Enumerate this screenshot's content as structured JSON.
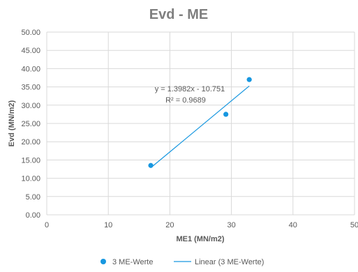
{
  "chart_data": {
    "type": "scatter",
    "title": "Evd - ME",
    "xlabel": "ME1 (MN/m2)",
    "ylabel": "Evd (MN/m2)",
    "xlim": [
      0,
      50
    ],
    "ylim": [
      0,
      50
    ],
    "x_ticks": [
      "0",
      "10",
      "20",
      "30",
      "40",
      "50"
    ],
    "y_ticks": [
      "0.00",
      "5.00",
      "10.00",
      "15.00",
      "20.00",
      "25.00",
      "30.00",
      "35.00",
      "40.00",
      "45.00",
      "50.00"
    ],
    "grid": "vertical and horizontal major gridlines",
    "legend_position": "bottom",
    "series": [
      {
        "name": "3 ME-Werte",
        "marker_color": "#1797e0",
        "points": [
          {
            "x": 16.9,
            "y": 13.5
          },
          {
            "x": 29.1,
            "y": 27.5
          },
          {
            "x": 32.9,
            "y": 37.0
          }
        ]
      }
    ],
    "trendline": {
      "name": "Linear (3 ME-Werte)",
      "type": "linear",
      "slope": 1.3982,
      "intercept": -10.751,
      "x_range": [
        16.9,
        32.9
      ],
      "color": "#1797e0",
      "equation_label": "y = 1.3982x - 10.751",
      "r2_label": "R² = 0.9689"
    }
  }
}
